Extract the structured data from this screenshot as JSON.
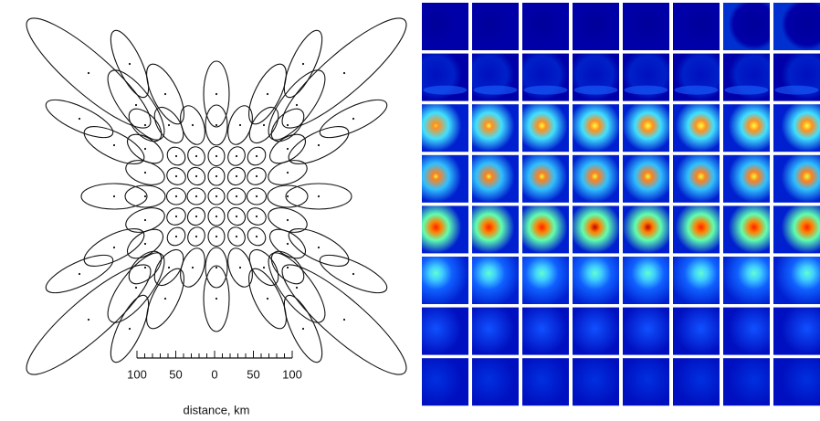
{
  "scale": {
    "ticks": [
      "100",
      "50",
      "0",
      "50",
      "100"
    ],
    "label": "distance, km"
  }
}
